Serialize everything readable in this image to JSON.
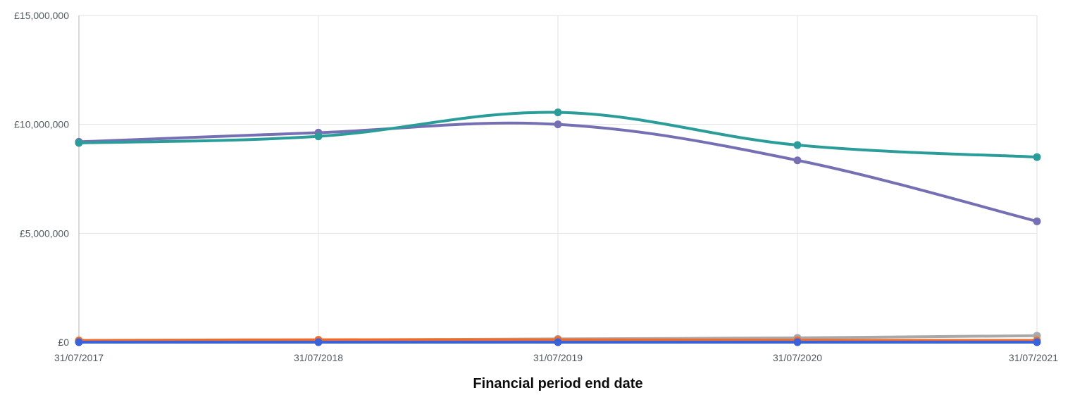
{
  "chart_data": {
    "type": "line",
    "title": "",
    "xlabel": "Financial period end date",
    "ylabel": "",
    "categories": [
      "31/07/2017",
      "31/07/2018",
      "31/07/2019",
      "31/07/2020",
      "31/07/2021"
    ],
    "ylim": [
      0,
      15000000
    ],
    "y_ticks": [
      0,
      5000000,
      10000000,
      15000000
    ],
    "y_tick_labels": [
      "£0",
      "£5,000,000",
      "£10,000,000",
      "£15,000,000"
    ],
    "grid": true,
    "curve": "smooth",
    "series": [
      {
        "color": "#7570b3",
        "values": [
          9200000,
          9620000,
          10000000,
          8350000,
          5550000
        ]
      },
      {
        "color": "#2a9d9a",
        "values": [
          9150000,
          9450000,
          10550000,
          9050000,
          8500000
        ]
      },
      {
        "color": "#a9a9a9",
        "values": [
          60000,
          100000,
          150000,
          200000,
          300000
        ]
      },
      {
        "color": "#f06a2a",
        "values": [
          80000,
          110000,
          110000,
          90000,
          80000
        ]
      },
      {
        "color": "#3b63d9",
        "values": [
          0,
          0,
          0,
          0,
          0
        ]
      }
    ]
  }
}
